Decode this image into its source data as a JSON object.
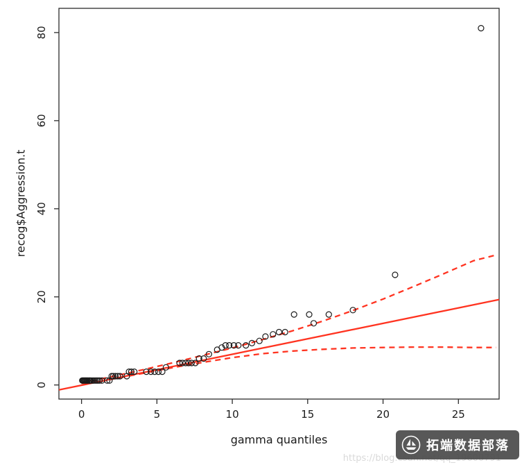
{
  "chart_data": {
    "type": "scatter",
    "title": "",
    "xlabel": "gamma quantiles",
    "ylabel": "recog$Aggression.t",
    "xlim": [
      -1.5,
      27.7
    ],
    "ylim": [
      -3.2,
      85.5
    ],
    "xticks": [
      0,
      5,
      10,
      15,
      20,
      25
    ],
    "yticks": [
      0,
      20,
      40,
      60,
      80
    ],
    "grid": false,
    "legend": "none",
    "point_color": "#1a1a1a",
    "line_color": "#ff3320",
    "points": [
      [
        0.05,
        1
      ],
      [
        0.1,
        1
      ],
      [
        0.15,
        1
      ],
      [
        0.2,
        1
      ],
      [
        0.25,
        1
      ],
      [
        0.3,
        1
      ],
      [
        0.35,
        1
      ],
      [
        0.4,
        1
      ],
      [
        0.5,
        1
      ],
      [
        0.55,
        1
      ],
      [
        0.6,
        1
      ],
      [
        0.7,
        1
      ],
      [
        0.8,
        1
      ],
      [
        0.9,
        1
      ],
      [
        1.0,
        1
      ],
      [
        1.1,
        1
      ],
      [
        1.2,
        1
      ],
      [
        1.35,
        1
      ],
      [
        1.7,
        1
      ],
      [
        1.85,
        1
      ],
      [
        2.0,
        2
      ],
      [
        2.1,
        2
      ],
      [
        2.25,
        2
      ],
      [
        2.4,
        2
      ],
      [
        2.55,
        2
      ],
      [
        3.0,
        2
      ],
      [
        3.15,
        3
      ],
      [
        3.3,
        3
      ],
      [
        3.5,
        3
      ],
      [
        4.3,
        3
      ],
      [
        4.6,
        3
      ],
      [
        4.85,
        3
      ],
      [
        5.1,
        3
      ],
      [
        5.35,
        3
      ],
      [
        5.6,
        4
      ],
      [
        6.5,
        5
      ],
      [
        6.7,
        5
      ],
      [
        6.9,
        5
      ],
      [
        7.1,
        5
      ],
      [
        7.3,
        5
      ],
      [
        7.55,
        5
      ],
      [
        7.8,
        6
      ],
      [
        8.1,
        6
      ],
      [
        8.45,
        7
      ],
      [
        9.0,
        8
      ],
      [
        9.3,
        8.5
      ],
      [
        9.55,
        9
      ],
      [
        9.8,
        9
      ],
      [
        10.1,
        9
      ],
      [
        10.4,
        9
      ],
      [
        10.9,
        9
      ],
      [
        11.3,
        9.5
      ],
      [
        11.8,
        10
      ],
      [
        12.2,
        11
      ],
      [
        12.7,
        11.5
      ],
      [
        13.1,
        12
      ],
      [
        13.5,
        12
      ],
      [
        14.1,
        16
      ],
      [
        15.1,
        16
      ],
      [
        15.4,
        14
      ],
      [
        16.4,
        16
      ],
      [
        18.0,
        17
      ],
      [
        20.8,
        25
      ],
      [
        26.5,
        81
      ]
    ],
    "reference_line": {
      "x": [
        -1.5,
        27.7
      ],
      "y": [
        -1.1,
        19.4
      ],
      "style": "solid"
    },
    "envelope_lower": {
      "x": [
        0,
        2,
        4,
        6,
        8,
        10,
        12,
        14,
        16,
        18,
        20,
        22,
        24,
        26,
        27.5
      ],
      "y": [
        0,
        1.3,
        2.6,
        3.9,
        5.1,
        6.2,
        7.1,
        7.7,
        8.1,
        8.4,
        8.5,
        8.6,
        8.6,
        8.5,
        8.5
      ],
      "style": "dashed"
    },
    "envelope_upper": {
      "x": [
        0,
        2,
        4,
        6,
        8,
        10,
        12,
        14,
        16,
        18,
        20,
        22,
        24,
        26,
        27.5
      ],
      "y": [
        0.4,
        1.9,
        3.4,
        5.0,
        6.7,
        8.4,
        10.3,
        12.3,
        14.5,
        16.9,
        19.5,
        22.3,
        25.2,
        28.2,
        29.5
      ],
      "style": "dashed"
    }
  },
  "watermark": {
    "label": "拓端数据部落",
    "url": "https://blog.csdn.net/qq_19600791"
  }
}
